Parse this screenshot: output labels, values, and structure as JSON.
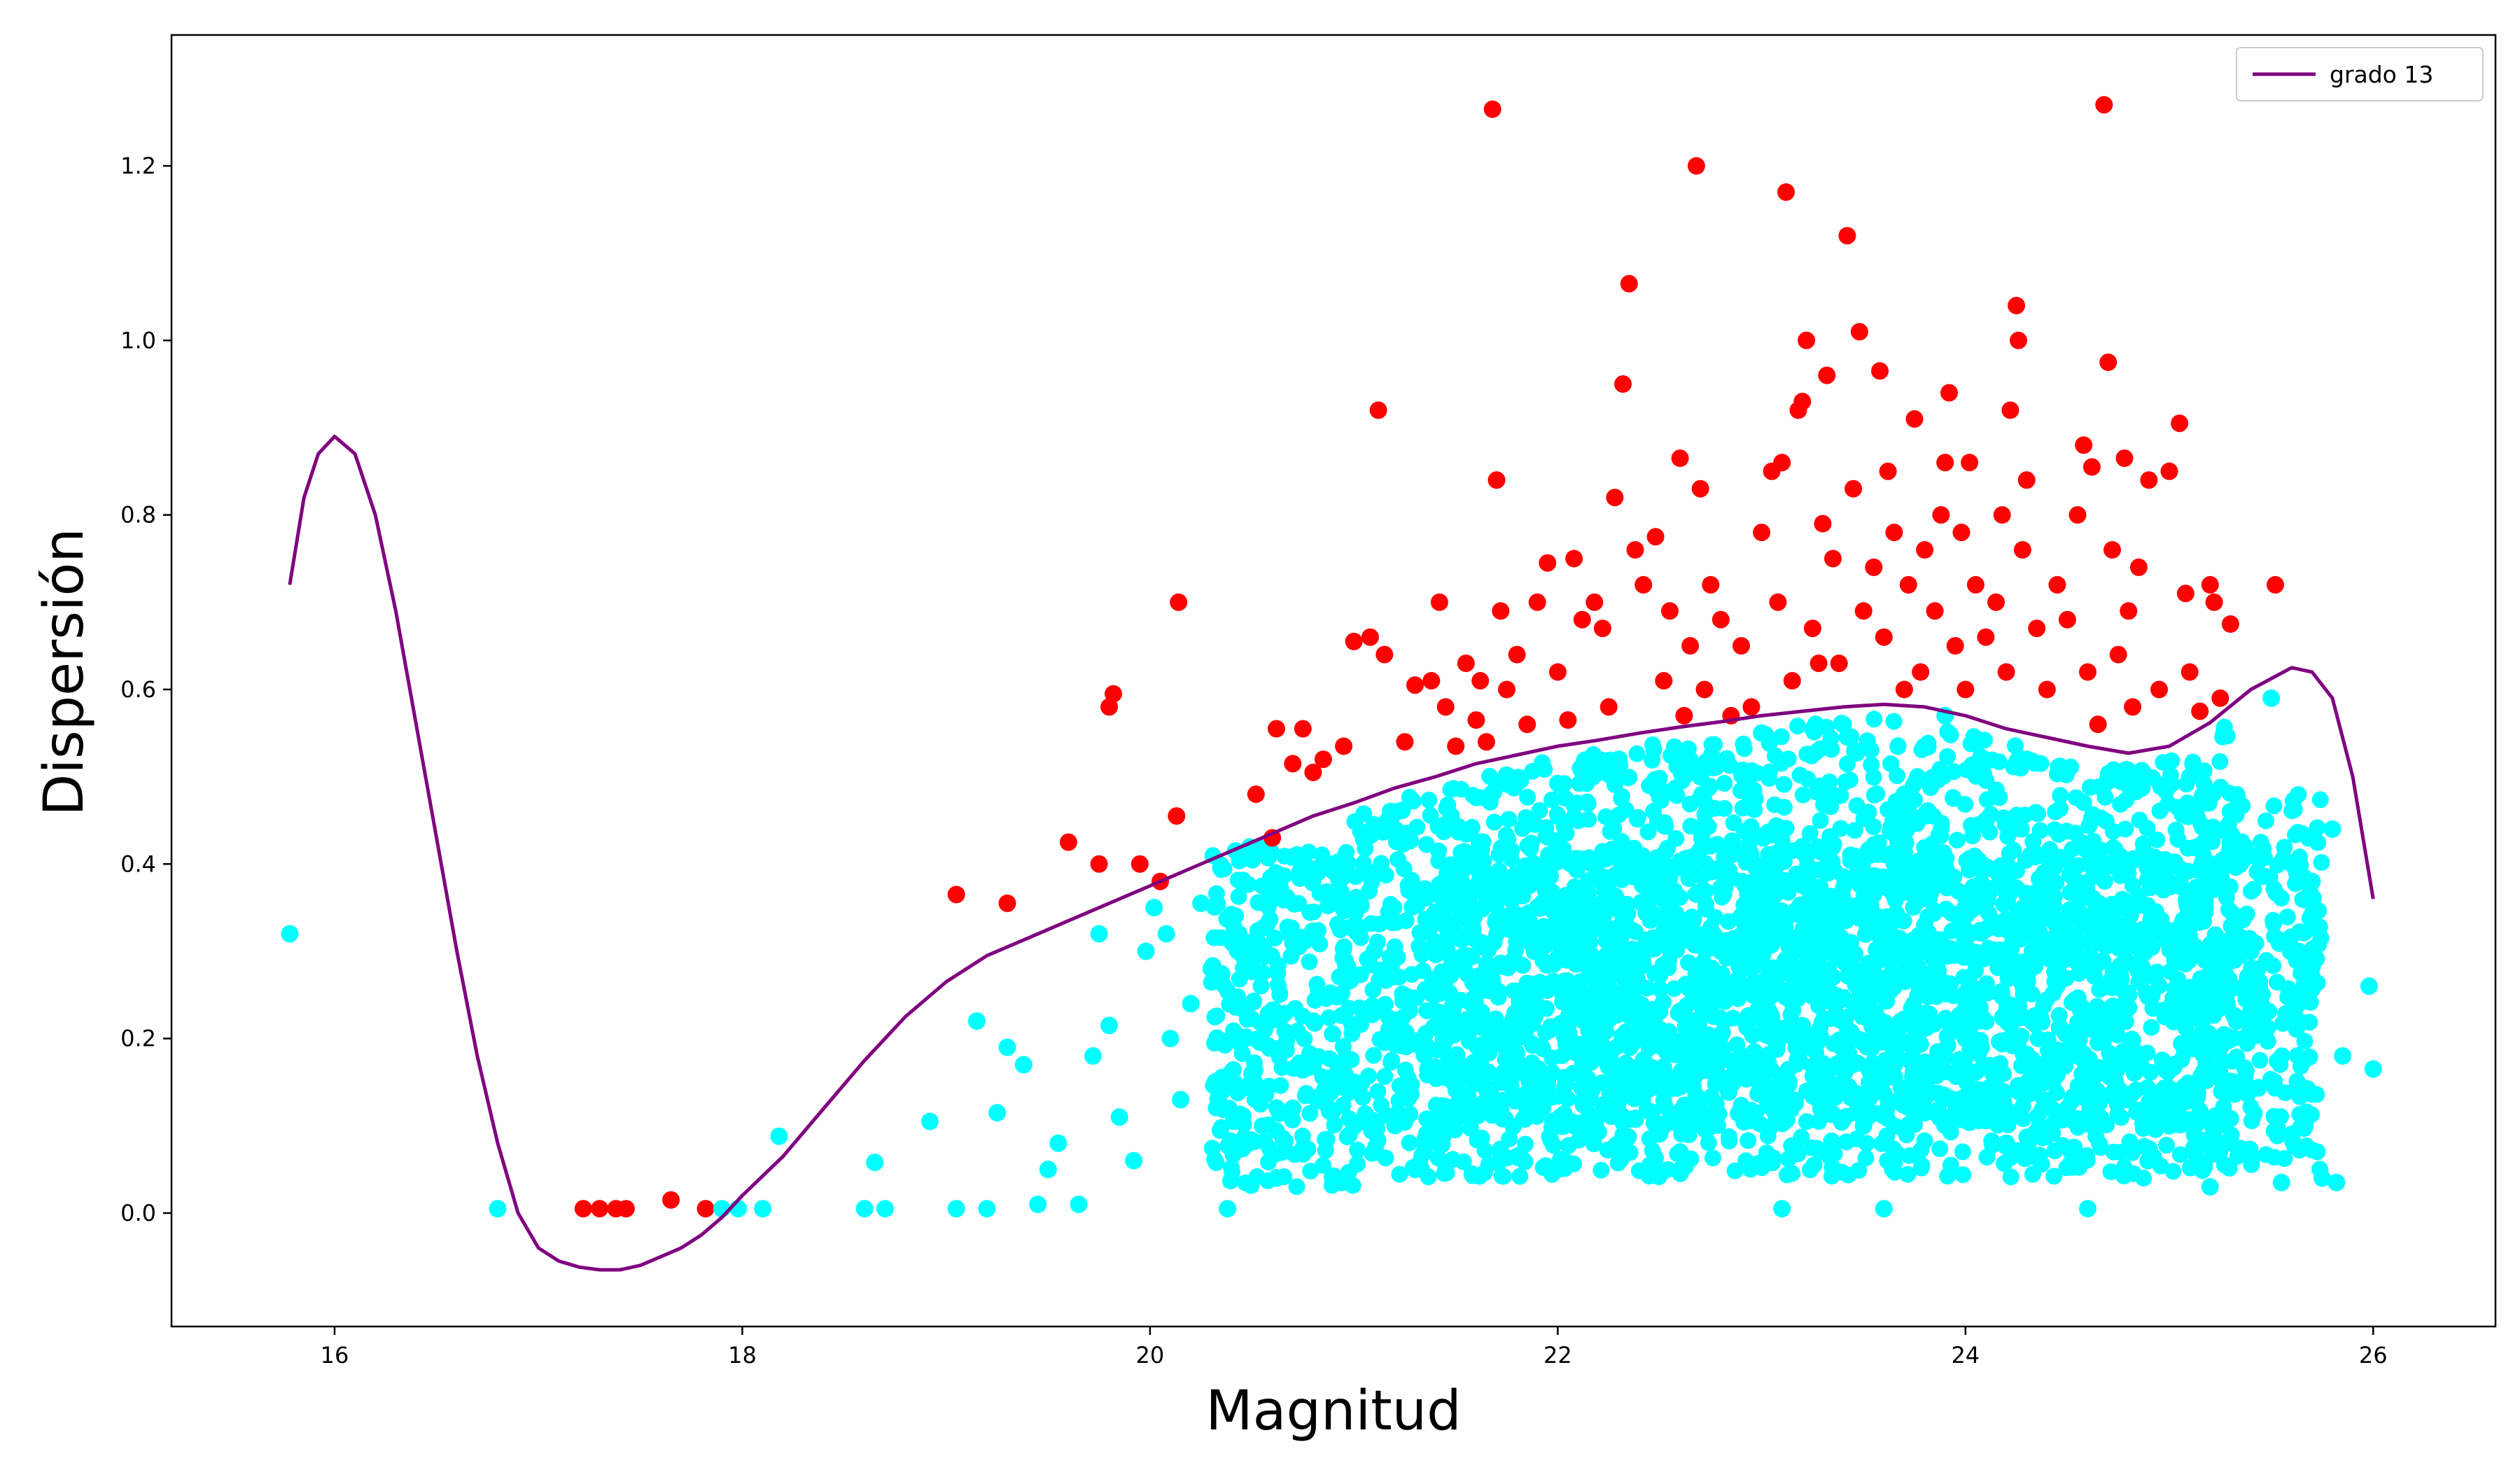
{
  "chart_data": {
    "type": "scatter",
    "xlabel": "Magnitud",
    "ylabel": "Dispersión",
    "xlim": [
      15.2,
      26.6
    ],
    "ylim": [
      -0.13,
      1.35
    ],
    "x_ticks": [
      16,
      18,
      20,
      22,
      24,
      26
    ],
    "y_ticks": [
      0.0,
      0.2,
      0.4,
      0.6,
      0.8,
      1.0,
      1.2
    ],
    "grid": false,
    "legend": {
      "position": "top-right",
      "entries": [
        {
          "label": "grado 13",
          "color": "#800080"
        }
      ]
    },
    "colors": {
      "fit_line": "#800080",
      "below_points": "#00ffff",
      "above_points": "#ff0000"
    },
    "fit_curve": {
      "name": "grado 13",
      "points": [
        [
          15.78,
          0.72
        ],
        [
          15.85,
          0.82
        ],
        [
          15.92,
          0.87
        ],
        [
          16.0,
          0.89
        ],
        [
          16.1,
          0.87
        ],
        [
          16.2,
          0.8
        ],
        [
          16.3,
          0.69
        ],
        [
          16.4,
          0.56
        ],
        [
          16.5,
          0.43
        ],
        [
          16.6,
          0.3
        ],
        [
          16.7,
          0.18
        ],
        [
          16.8,
          0.08
        ],
        [
          16.9,
          0.0
        ],
        [
          17.0,
          -0.04
        ],
        [
          17.1,
          -0.055
        ],
        [
          17.2,
          -0.062
        ],
        [
          17.3,
          -0.065
        ],
        [
          17.4,
          -0.065
        ],
        [
          17.5,
          -0.06
        ],
        [
          17.6,
          -0.05
        ],
        [
          17.7,
          -0.04
        ],
        [
          17.8,
          -0.025
        ],
        [
          17.9,
          -0.005
        ],
        [
          18.0,
          0.02
        ],
        [
          18.2,
          0.065
        ],
        [
          18.4,
          0.12
        ],
        [
          18.6,
          0.175
        ],
        [
          18.8,
          0.225
        ],
        [
          19.0,
          0.265
        ],
        [
          19.2,
          0.295
        ],
        [
          19.4,
          0.315
        ],
        [
          19.6,
          0.335
        ],
        [
          19.8,
          0.355
        ],
        [
          20.0,
          0.375
        ],
        [
          20.2,
          0.395
        ],
        [
          20.4,
          0.415
        ],
        [
          20.6,
          0.435
        ],
        [
          20.8,
          0.455
        ],
        [
          21.0,
          0.47
        ],
        [
          21.2,
          0.487
        ],
        [
          21.4,
          0.5
        ],
        [
          21.6,
          0.515
        ],
        [
          21.8,
          0.525
        ],
        [
          22.0,
          0.535
        ],
        [
          22.2,
          0.542
        ],
        [
          22.4,
          0.55
        ],
        [
          22.6,
          0.557
        ],
        [
          22.8,
          0.563
        ],
        [
          23.0,
          0.57
        ],
        [
          23.2,
          0.575
        ],
        [
          23.4,
          0.58
        ],
        [
          23.6,
          0.583
        ],
        [
          23.8,
          0.58
        ],
        [
          24.0,
          0.57
        ],
        [
          24.2,
          0.555
        ],
        [
          24.4,
          0.545
        ],
        [
          24.6,
          0.535
        ],
        [
          24.8,
          0.527
        ],
        [
          25.0,
          0.535
        ],
        [
          25.2,
          0.562
        ],
        [
          25.4,
          0.6
        ],
        [
          25.6,
          0.625
        ],
        [
          25.7,
          0.62
        ],
        [
          25.8,
          0.59
        ],
        [
          25.9,
          0.5
        ],
        [
          26.0,
          0.36
        ]
      ]
    },
    "series": [
      {
        "role": "above",
        "points": [
          [
            17.22,
            0.005
          ],
          [
            17.3,
            0.005
          ],
          [
            17.38,
            0.005
          ],
          [
            17.43,
            0.005
          ],
          [
            17.65,
            0.015
          ],
          [
            17.82,
            0.005
          ],
          [
            19.05,
            0.365
          ],
          [
            19.3,
            0.355
          ],
          [
            19.6,
            0.425
          ],
          [
            19.75,
            0.4
          ],
          [
            19.8,
            0.58
          ],
          [
            19.82,
            0.595
          ],
          [
            19.95,
            0.4
          ],
          [
            20.05,
            0.38
          ],
          [
            20.13,
            0.455
          ],
          [
            20.14,
            0.7
          ],
          [
            20.52,
            0.48
          ],
          [
            20.6,
            0.43
          ],
          [
            20.62,
            0.555
          ],
          [
            20.7,
            0.515
          ],
          [
            20.75,
            0.555
          ],
          [
            20.8,
            0.505
          ],
          [
            20.85,
            0.52
          ],
          [
            20.95,
            0.535
          ],
          [
            21.0,
            0.655
          ],
          [
            21.08,
            0.66
          ],
          [
            21.12,
            0.92
          ],
          [
            21.15,
            0.64
          ],
          [
            21.25,
            0.54
          ],
          [
            21.3,
            0.605
          ],
          [
            21.38,
            0.61
          ],
          [
            21.42,
            0.7
          ],
          [
            21.45,
            0.58
          ],
          [
            21.5,
            0.535
          ],
          [
            21.55,
            0.63
          ],
          [
            21.6,
            0.565
          ],
          [
            21.62,
            0.61
          ],
          [
            21.65,
            0.54
          ],
          [
            21.68,
            1.265
          ],
          [
            21.7,
            0.84
          ],
          [
            21.72,
            0.69
          ],
          [
            21.75,
            0.6
          ],
          [
            21.8,
            0.64
          ],
          [
            21.85,
            0.56
          ],
          [
            21.9,
            0.7
          ],
          [
            21.95,
            0.745
          ],
          [
            22.0,
            0.62
          ],
          [
            22.05,
            0.565
          ],
          [
            22.08,
            0.75
          ],
          [
            22.12,
            0.68
          ],
          [
            22.18,
            0.7
          ],
          [
            22.22,
            0.67
          ],
          [
            22.25,
            0.58
          ],
          [
            22.28,
            0.82
          ],
          [
            22.32,
            0.95
          ],
          [
            22.35,
            1.065
          ],
          [
            22.38,
            0.76
          ],
          [
            22.42,
            0.72
          ],
          [
            22.48,
            0.775
          ],
          [
            22.52,
            0.61
          ],
          [
            22.55,
            0.69
          ],
          [
            22.6,
            0.865
          ],
          [
            22.62,
            0.57
          ],
          [
            22.65,
            0.65
          ],
          [
            22.68,
            1.2
          ],
          [
            22.7,
            0.83
          ],
          [
            22.72,
            0.6
          ],
          [
            22.75,
            0.72
          ],
          [
            22.8,
            0.68
          ],
          [
            22.85,
            0.57
          ],
          [
            22.9,
            0.65
          ],
          [
            22.95,
            0.58
          ],
          [
            23.0,
            0.78
          ],
          [
            23.05,
            0.85
          ],
          [
            23.08,
            0.7
          ],
          [
            23.1,
            0.86
          ],
          [
            23.12,
            1.17
          ],
          [
            23.15,
            0.61
          ],
          [
            23.18,
            0.92
          ],
          [
            23.2,
            0.93
          ],
          [
            23.22,
            1.0
          ],
          [
            23.25,
            0.67
          ],
          [
            23.28,
            0.63
          ],
          [
            23.3,
            0.79
          ],
          [
            23.32,
            0.96
          ],
          [
            23.35,
            0.75
          ],
          [
            23.38,
            0.63
          ],
          [
            23.42,
            1.12
          ],
          [
            23.45,
            0.83
          ],
          [
            23.48,
            1.01
          ],
          [
            23.5,
            0.69
          ],
          [
            23.55,
            0.74
          ],
          [
            23.58,
            0.965
          ],
          [
            23.6,
            0.66
          ],
          [
            23.62,
            0.85
          ],
          [
            23.65,
            0.78
          ],
          [
            23.7,
            0.6
          ],
          [
            23.72,
            0.72
          ],
          [
            23.75,
            0.91
          ],
          [
            23.78,
            0.62
          ],
          [
            23.8,
            0.76
          ],
          [
            23.85,
            0.69
          ],
          [
            23.88,
            0.8
          ],
          [
            23.9,
            0.86
          ],
          [
            23.92,
            0.94
          ],
          [
            23.95,
            0.65
          ],
          [
            23.98,
            0.78
          ],
          [
            24.0,
            0.6
          ],
          [
            24.02,
            0.86
          ],
          [
            24.05,
            0.72
          ],
          [
            24.1,
            0.66
          ],
          [
            24.15,
            0.7
          ],
          [
            24.18,
            0.8
          ],
          [
            24.2,
            0.62
          ],
          [
            24.22,
            0.92
          ],
          [
            24.25,
            1.04
          ],
          [
            24.26,
            1.0
          ],
          [
            24.28,
            0.76
          ],
          [
            24.3,
            0.84
          ],
          [
            24.35,
            0.67
          ],
          [
            24.4,
            0.6
          ],
          [
            24.45,
            0.72
          ],
          [
            24.5,
            0.68
          ],
          [
            24.55,
            0.8
          ],
          [
            24.58,
            0.88
          ],
          [
            24.6,
            0.62
          ],
          [
            24.62,
            0.855
          ],
          [
            24.65,
            0.56
          ],
          [
            24.68,
            1.27
          ],
          [
            24.7,
            0.975
          ],
          [
            24.72,
            0.76
          ],
          [
            24.75,
            0.64
          ],
          [
            24.78,
            0.865
          ],
          [
            24.8,
            0.69
          ],
          [
            24.82,
            0.58
          ],
          [
            24.85,
            0.74
          ],
          [
            24.9,
            0.84
          ],
          [
            24.95,
            0.6
          ],
          [
            25.0,
            0.85
          ],
          [
            25.05,
            0.905
          ],
          [
            25.08,
            0.71
          ],
          [
            25.1,
            0.62
          ],
          [
            25.15,
            0.575
          ],
          [
            25.2,
            0.72
          ],
          [
            25.22,
            0.7
          ],
          [
            25.25,
            0.59
          ],
          [
            25.3,
            0.675
          ],
          [
            25.52,
            0.72
          ]
        ]
      },
      {
        "role": "below",
        "points": [
          [
            15.78,
            0.32
          ],
          [
            16.8,
            0.005
          ],
          [
            17.9,
            0.005
          ],
          [
            17.98,
            0.005
          ],
          [
            18.1,
            0.005
          ],
          [
            18.18,
            0.088
          ],
          [
            18.6,
            0.005
          ],
          [
            18.65,
            0.058
          ],
          [
            18.7,
            0.005
          ],
          [
            18.92,
            0.105
          ],
          [
            19.05,
            0.005
          ],
          [
            19.15,
            0.22
          ],
          [
            19.2,
            0.005
          ],
          [
            19.25,
            0.115
          ],
          [
            19.3,
            0.19
          ],
          [
            19.38,
            0.17
          ],
          [
            19.45,
            0.01
          ],
          [
            19.5,
            0.05
          ],
          [
            19.55,
            0.08
          ],
          [
            19.65,
            0.01
          ],
          [
            19.72,
            0.18
          ],
          [
            19.75,
            0.32
          ],
          [
            19.8,
            0.215
          ],
          [
            19.85,
            0.11
          ],
          [
            19.92,
            0.06
          ],
          [
            19.98,
            0.3
          ],
          [
            20.02,
            0.35
          ],
          [
            20.08,
            0.32
          ],
          [
            20.1,
            0.2
          ],
          [
            20.15,
            0.13
          ],
          [
            20.2,
            0.24
          ],
          [
            20.25,
            0.355
          ],
          [
            20.3,
            0.28
          ],
          [
            20.38,
            0.005
          ],
          [
            20.42,
            0.415
          ],
          [
            20.5,
            0.16
          ],
          [
            20.55,
            0.3
          ],
          [
            20.6,
            0.36
          ],
          [
            20.7,
            0.12
          ],
          [
            20.8,
            0.22
          ],
          [
            20.9,
            0.4
          ],
          [
            21.0,
            0.15
          ],
          [
            21.1,
            0.3
          ],
          [
            21.2,
            0.46
          ],
          [
            21.3,
            0.05
          ],
          [
            21.4,
            0.25
          ],
          [
            21.5,
            0.38
          ],
          [
            21.6,
            0.12
          ],
          [
            21.7,
            0.49
          ],
          [
            21.8,
            0.2
          ],
          [
            21.9,
            0.35
          ],
          [
            22.0,
            0.1
          ],
          [
            22.1,
            0.45
          ],
          [
            22.2,
            0.28
          ],
          [
            22.3,
            0.52
          ],
          [
            22.4,
            0.15
          ],
          [
            22.5,
            0.4
          ],
          [
            22.6,
            0.07
          ],
          [
            22.7,
            0.5
          ],
          [
            22.8,
            0.3
          ],
          [
            22.9,
            0.18
          ],
          [
            23.0,
            0.55
          ],
          [
            23.1,
            0.005
          ],
          [
            23.2,
            0.42
          ],
          [
            23.3,
            0.25
          ],
          [
            23.4,
            0.56
          ],
          [
            23.5,
            0.1
          ],
          [
            23.6,
            0.005
          ],
          [
            23.7,
            0.48
          ],
          [
            23.8,
            0.33
          ],
          [
            23.9,
            0.57
          ],
          [
            24.0,
            0.2
          ],
          [
            24.1,
            0.45
          ],
          [
            24.2,
            0.08
          ],
          [
            24.3,
            0.52
          ],
          [
            24.4,
            0.3
          ],
          [
            24.5,
            0.12
          ],
          [
            24.6,
            0.005
          ],
          [
            24.7,
            0.5
          ],
          [
            24.8,
            0.25
          ],
          [
            24.9,
            0.4
          ],
          [
            25.0,
            0.1
          ],
          [
            25.1,
            0.5
          ],
          [
            25.2,
            0.03
          ],
          [
            25.3,
            0.46
          ],
          [
            25.4,
            0.3
          ],
          [
            25.5,
            0.59
          ],
          [
            25.55,
            0.035
          ],
          [
            25.6,
            0.4
          ],
          [
            25.65,
            0.1
          ],
          [
            25.7,
            0.38
          ],
          [
            25.75,
            0.04
          ],
          [
            25.8,
            0.44
          ],
          [
            25.82,
            0.035
          ],
          [
            25.85,
            0.18
          ],
          [
            25.98,
            0.26
          ],
          [
            26.0,
            0.165
          ]
        ]
      }
    ]
  }
}
